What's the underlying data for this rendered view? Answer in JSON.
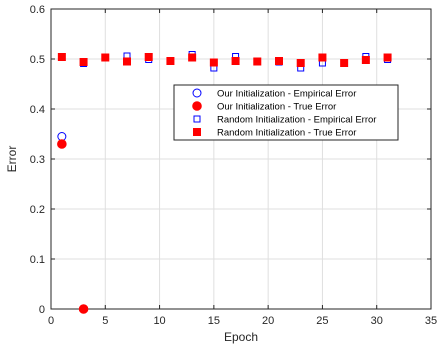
{
  "chart_data": {
    "type": "scatter",
    "xlabel": "Epoch",
    "ylabel": "Error",
    "xlim": [
      0,
      35
    ],
    "ylim": [
      0,
      0.6
    ],
    "xticks": [
      0,
      5,
      10,
      15,
      20,
      25,
      30,
      35
    ],
    "yticks": [
      0,
      0.1,
      0.2,
      0.3,
      0.4,
      0.5,
      0.6
    ],
    "xtick_labels": [
      "0",
      "5",
      "10",
      "15",
      "20",
      "25",
      "30",
      "35"
    ],
    "ytick_labels": [
      "0",
      "0.1",
      "0.2",
      "0.3",
      "0.4",
      "0.5",
      "0.6"
    ],
    "grid": true,
    "legend_position": "center-right",
    "series": [
      {
        "name": "Our Initialization - Empirical Error",
        "marker": "circle-open",
        "color": "#0000ff",
        "points": [
          [
            1,
            0.345
          ],
          [
            3,
            0.0
          ]
        ]
      },
      {
        "name": "Our Initialization - True Error",
        "marker": "circle-filled",
        "color": "#ff0000",
        "points": [
          [
            1,
            0.33
          ],
          [
            3,
            0.0
          ]
        ]
      },
      {
        "name": "Random Initialization - Empirical Error",
        "marker": "square-open",
        "color": "#0000ff",
        "points": [
          [
            1,
            0.503
          ],
          [
            3,
            0.491
          ],
          [
            5,
            0.503
          ],
          [
            7,
            0.506
          ],
          [
            9,
            0.499
          ],
          [
            11,
            0.497
          ],
          [
            13,
            0.509
          ],
          [
            15,
            0.482
          ],
          [
            17,
            0.505
          ],
          [
            19,
            0.495
          ],
          [
            21,
            0.494
          ],
          [
            23,
            0.482
          ],
          [
            25,
            0.492
          ],
          [
            27,
            0.492
          ],
          [
            29,
            0.505
          ],
          [
            31,
            0.499
          ]
        ]
      },
      {
        "name": "Random Initialization - True Error",
        "marker": "square-filled",
        "color": "#ff0000",
        "points": [
          [
            1,
            0.504
          ],
          [
            3,
            0.494
          ],
          [
            5,
            0.503
          ],
          [
            7,
            0.495
          ],
          [
            9,
            0.504
          ],
          [
            11,
            0.496
          ],
          [
            13,
            0.503
          ],
          [
            15,
            0.493
          ],
          [
            17,
            0.496
          ],
          [
            19,
            0.495
          ],
          [
            21,
            0.496
          ],
          [
            23,
            0.492
          ],
          [
            25,
            0.503
          ],
          [
            27,
            0.492
          ],
          [
            29,
            0.498
          ],
          [
            31,
            0.503
          ]
        ]
      }
    ]
  }
}
